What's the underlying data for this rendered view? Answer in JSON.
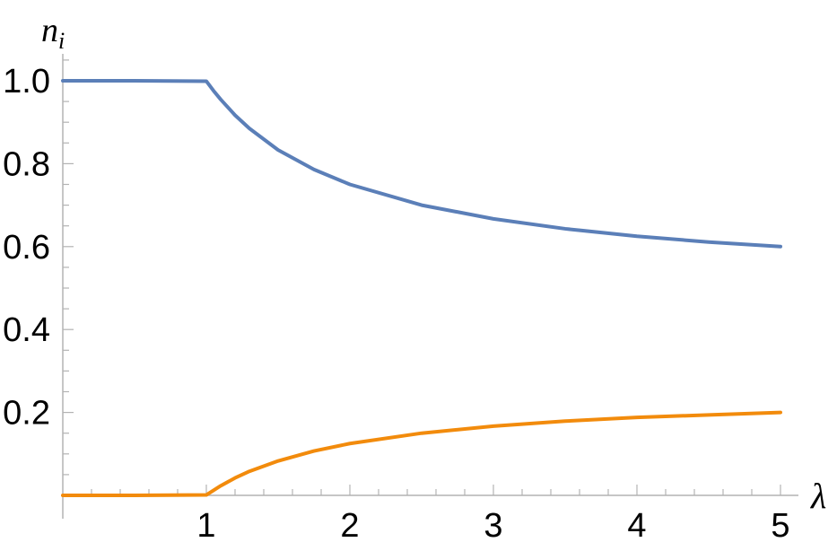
{
  "chart_data": {
    "type": "line",
    "title": "",
    "xlabel": "λ",
    "ylabel_main": "n",
    "ylabel_sub": "i",
    "xlim": [
      0,
      5
    ],
    "ylim": [
      0,
      1.0
    ],
    "grid": false,
    "x_ticks": [
      "1",
      "2",
      "3",
      "4",
      "5"
    ],
    "y_ticks": [
      "0.2",
      "0.4",
      "0.6",
      "0.8",
      "1.0"
    ],
    "series": [
      {
        "color": "#5b7fb8",
        "x": [
          0,
          0.5,
          1.0,
          1.05,
          1.1,
          1.2,
          1.3,
          1.5,
          1.75,
          2.0,
          2.5,
          3.0,
          3.5,
          4.0,
          4.5,
          5.0
        ],
        "values": [
          1.0,
          1.0,
          0.999,
          0.976,
          0.955,
          0.917,
          0.885,
          0.833,
          0.786,
          0.75,
          0.7,
          0.667,
          0.643,
          0.625,
          0.611,
          0.6
        ]
      },
      {
        "color": "#f28b0c",
        "x": [
          0,
          0.5,
          1.0,
          1.05,
          1.1,
          1.2,
          1.3,
          1.5,
          1.75,
          2.0,
          2.5,
          3.0,
          3.5,
          4.0,
          4.5,
          5.0
        ],
        "values": [
          0.0,
          0.0,
          0.001,
          0.012,
          0.023,
          0.042,
          0.058,
          0.083,
          0.107,
          0.125,
          0.15,
          0.167,
          0.179,
          0.188,
          0.194,
          0.2
        ]
      }
    ]
  }
}
